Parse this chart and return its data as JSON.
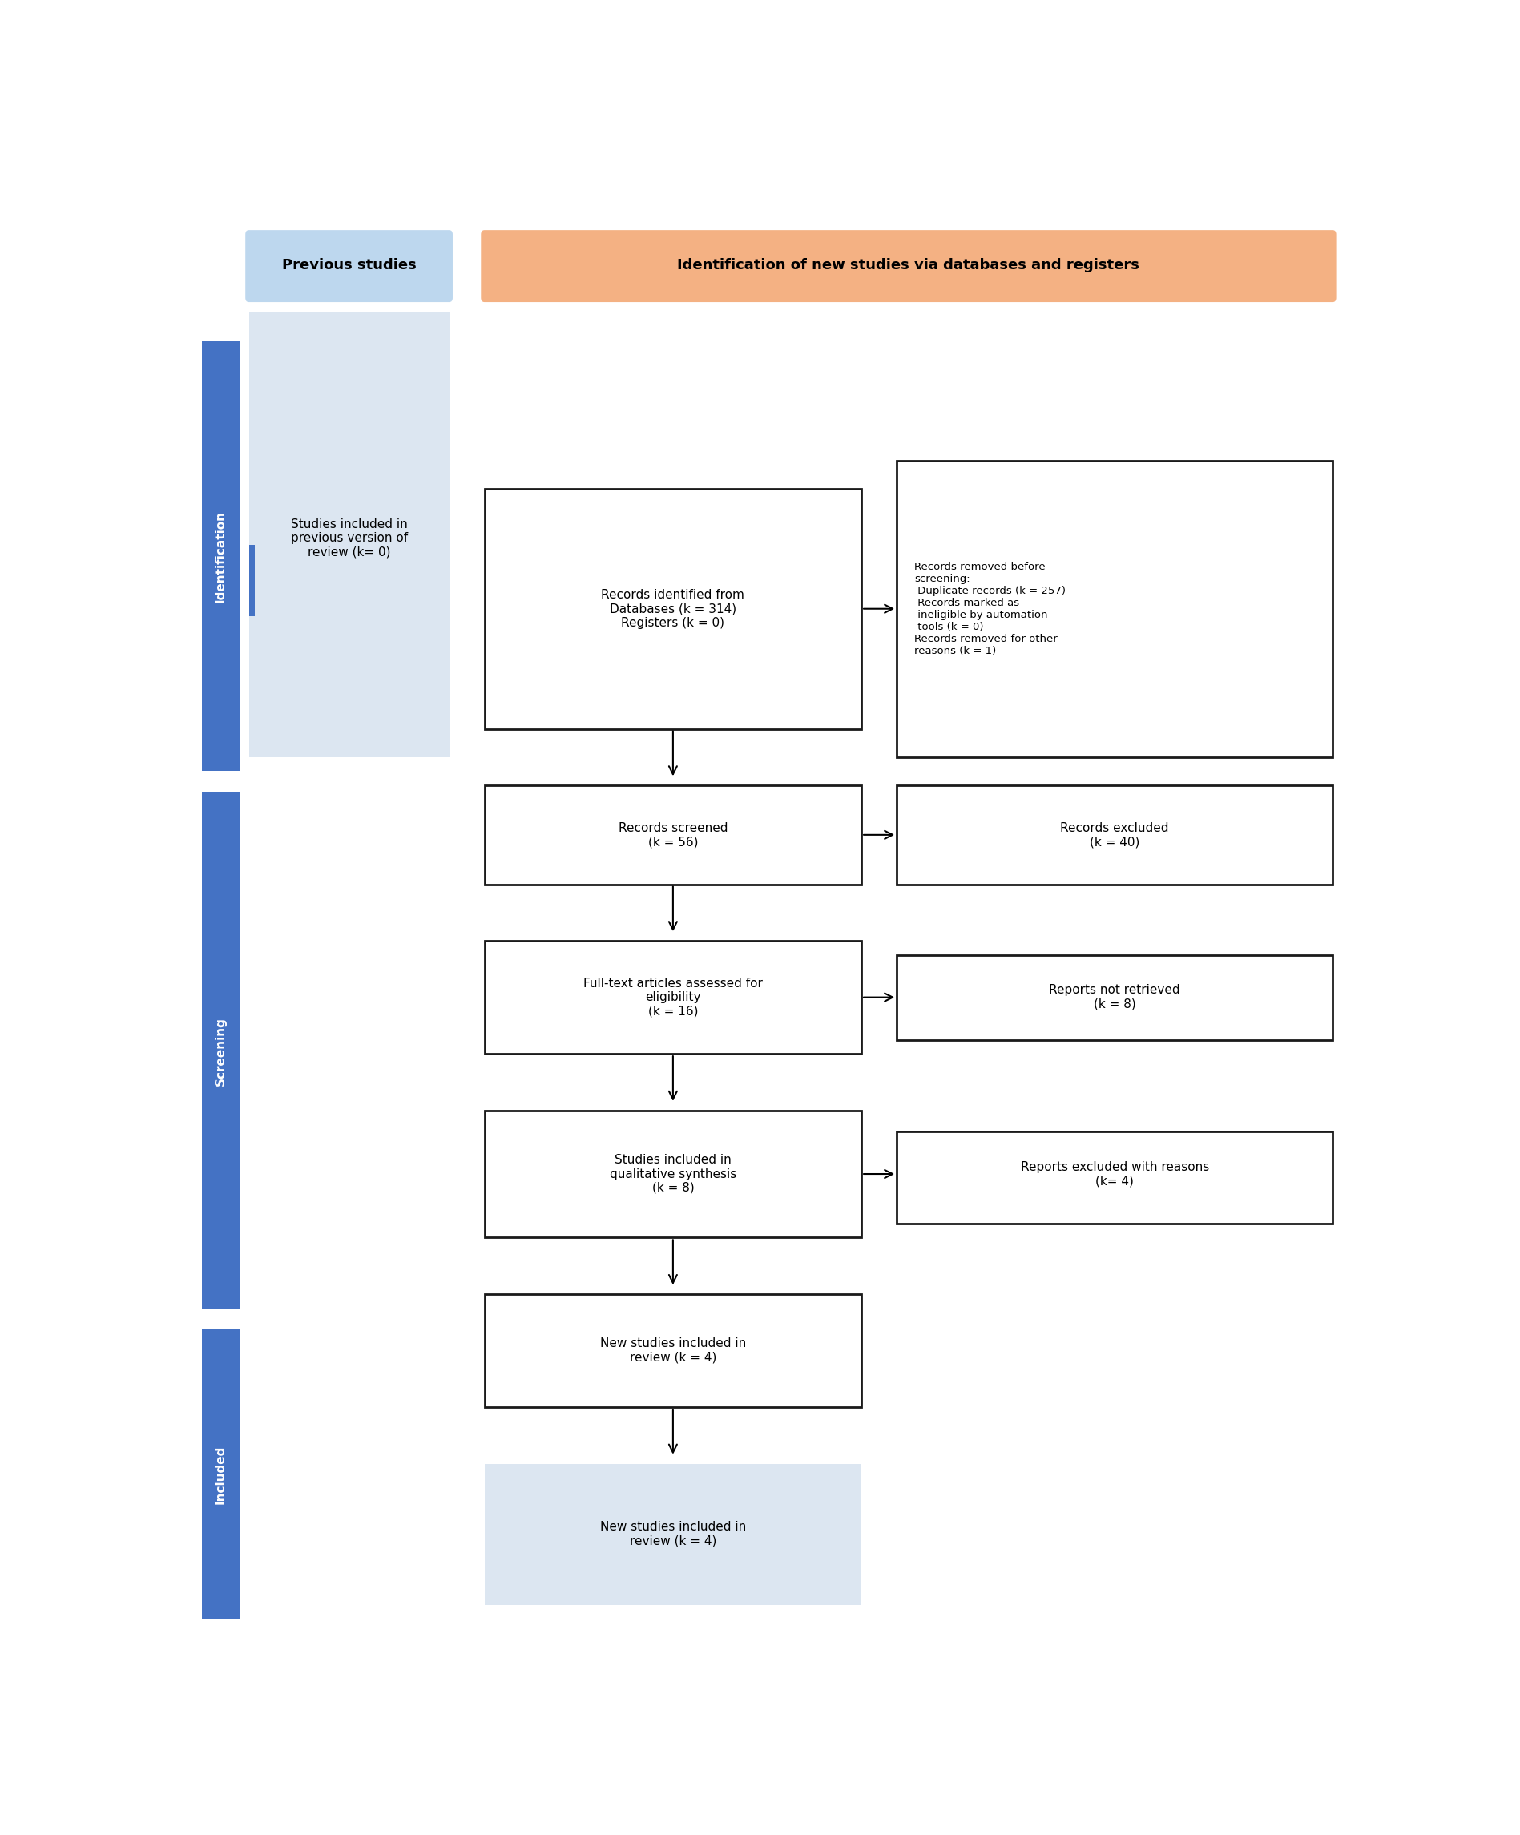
{
  "fig_width": 18.97,
  "fig_height": 22.9,
  "bg_color": "#ffffff",
  "header_left_text": "Previous studies",
  "header_left_color": "#bdd7ee",
  "header_right_text": "Identification of new studies via databases and registers",
  "header_right_color": "#f4b183",
  "sidebar_color": "#4472c4",
  "sidebar_text_color": "#ffffff",
  "prev_studies_box_color": "#dce6f1",
  "prev_studies_text": "Studies included in\nprevious version of\nreview (k= 0)",
  "box1_text": "Records identified from\nDatabases (k = 314)\nRegisters (k = 0)",
  "box2_text": "Records removed before\nscreening:\n Duplicate records (k = 257)\n Records marked as\n ineligible by automation\n tools (k = 0)\nRecords removed for other\nreasons (k = 1)",
  "box3_text": "Records screened\n(k = 56)",
  "box4_text": "Records excluded\n(k = 40)",
  "box5_text": "Full-text articles assessed for\neligibility\n(k = 16)",
  "box6_text": "Reports not retrieved\n(k = 8)",
  "box7_text": "Studies included in\nqualitative synthesis\n(k = 8)",
  "box8_text": "Reports excluded with reasons\n(k= 4)",
  "box9_text": "New studies included in\nreview (k = 4)",
  "box10_text": "New studies included in\nreview (k = 4)",
  "box10_color": "#dce6f1",
  "arrow_color": "#000000",
  "box_border_color": "#1a1a1a",
  "text_color": "#000000"
}
